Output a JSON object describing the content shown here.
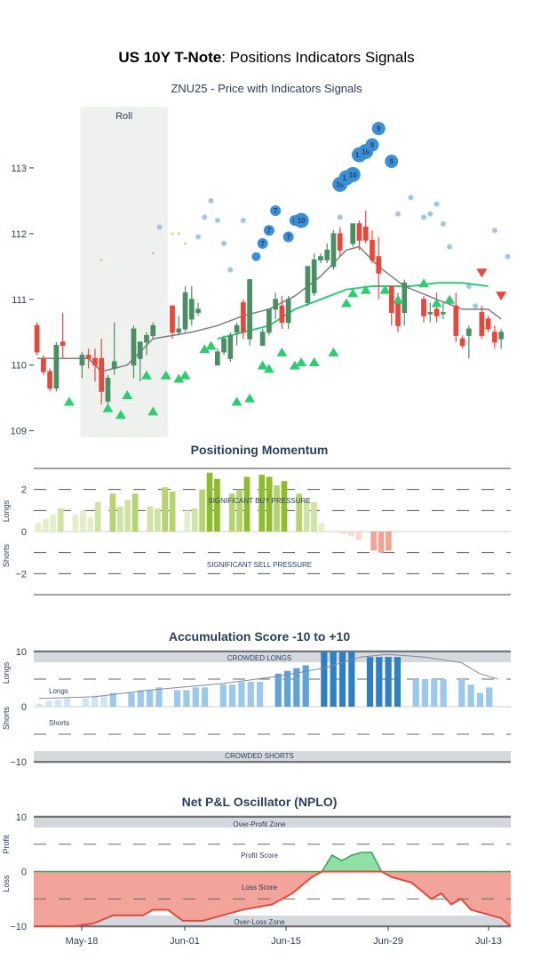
{
  "title_bold": "US 10Y T-Note",
  "title_rest": ": Positions Indicators Signals",
  "subtitle": "ZNU25 - Price with Indicators Signals",
  "colors": {
    "up": "#4a8f63",
    "down": "#e8473a",
    "ma_gray": "#7f7f7f",
    "ma_green": "#2ecc71",
    "buy_tri": "#2ecc71",
    "sell_tri": "#e8473a",
    "bubble": "#3a8fd6",
    "roll_bg": "#eef1ee"
  },
  "x_ticks": [
    "May-18",
    "Jun-01",
    "Jun-15",
    "Jun-29",
    "Jul-13"
  ],
  "chart_data": [
    {
      "type": "candlestick",
      "title": "ZNU25 - Price with Indicators Signals",
      "ylim": [
        108.9,
        114.0
      ],
      "yticks": [
        "109",
        "110",
        "111",
        "112",
        "113"
      ],
      "roll_label": "Roll",
      "x_count": 59,
      "roll_range": [
        7,
        20
      ],
      "candles": [
        [
          0,
          110.6,
          110.65,
          110.15,
          110.2
        ],
        [
          1,
          110.1,
          110.15,
          109.85,
          109.9
        ],
        [
          2,
          109.9,
          109.95,
          109.6,
          109.65
        ],
        [
          3,
          109.65,
          110.35,
          109.6,
          110.3
        ],
        [
          4,
          110.35,
          110.8,
          110.1,
          110.3
        ],
        [
          7,
          110.0,
          110.2,
          109.8,
          110.15
        ],
        [
          8,
          110.15,
          110.25,
          109.95,
          110.1
        ],
        [
          9,
          110.1,
          110.25,
          109.75,
          110.0
        ],
        [
          10,
          110.1,
          110.4,
          109.4,
          109.6
        ],
        [
          11,
          109.45,
          109.85,
          109.4,
          109.8
        ],
        [
          12,
          109.95,
          110.65,
          109.85,
          110.05
        ],
        [
          15,
          110.0,
          110.6,
          109.8,
          110.55
        ],
        [
          16,
          110.1,
          110.35,
          109.75,
          110.35
        ],
        [
          17,
          110.35,
          110.5,
          110.15,
          110.45
        ],
        [
          18,
          110.45,
          110.65,
          110.4,
          110.6
        ],
        [
          21,
          110.9,
          110.9,
          110.4,
          110.5
        ],
        [
          22,
          110.5,
          110.75,
          110.45,
          110.55
        ],
        [
          23,
          110.55,
          111.2,
          110.5,
          111.1
        ],
        [
          24,
          110.7,
          111.2,
          110.6,
          111.0
        ],
        [
          25,
          110.8,
          110.95,
          110.75,
          110.85
        ],
        [
          28,
          110.0,
          110.25,
          110.0,
          110.2
        ],
        [
          29,
          110.2,
          110.45,
          110.15,
          110.4
        ],
        [
          30,
          110.1,
          110.5,
          110.05,
          110.45
        ],
        [
          31,
          110.5,
          110.65,
          110.3,
          110.6
        ],
        [
          32,
          110.95,
          111.0,
          110.4,
          110.5
        ],
        [
          33,
          110.4,
          111.3,
          110.3,
          111.3
        ],
        [
          35,
          110.3,
          110.55,
          110.3,
          110.5
        ],
        [
          36,
          110.5,
          110.85,
          110.45,
          110.85
        ],
        [
          37,
          110.85,
          111.1,
          110.7,
          111.0
        ],
        [
          38,
          110.9,
          111.05,
          110.55,
          110.65
        ],
        [
          39,
          110.65,
          111.05,
          110.55,
          111.0
        ],
        [
          42,
          110.95,
          111.5,
          110.9,
          111.5
        ],
        [
          43,
          111.1,
          111.7,
          111.05,
          111.6
        ],
        [
          44,
          111.6,
          111.7,
          111.55,
          111.65
        ],
        [
          45,
          111.6,
          111.85,
          111.55,
          111.75
        ],
        [
          46,
          111.5,
          112.05,
          111.45,
          112.0
        ],
        [
          47,
          112.0,
          112.1,
          111.65,
          111.75
        ],
        [
          49,
          111.85,
          112.15,
          111.8,
          112.15
        ],
        [
          50,
          112.15,
          112.2,
          111.75,
          111.9
        ],
        [
          51,
          112.1,
          112.35,
          111.85,
          111.9
        ],
        [
          52,
          111.9,
          112.05,
          111.55,
          111.6
        ],
        [
          53,
          111.65,
          111.95,
          111.0,
          111.4
        ],
        [
          55,
          111.2,
          111.2,
          110.6,
          110.8
        ],
        [
          56,
          111.0,
          111.1,
          110.5,
          110.6
        ],
        [
          57,
          110.8,
          111.3,
          110.6,
          111.25
        ],
        [
          60,
          111.0,
          111.05,
          110.65,
          110.75
        ],
        [
          61,
          110.8,
          110.95,
          110.65,
          110.8
        ],
        [
          62,
          110.85,
          111.1,
          110.65,
          110.75
        ],
        [
          63,
          110.8,
          110.95,
          110.7,
          110.8
        ],
        [
          65,
          110.9,
          111.1,
          110.35,
          110.45
        ],
        [
          66,
          110.4,
          110.45,
          110.25,
          110.3
        ],
        [
          67,
          110.45,
          110.6,
          110.1,
          110.55
        ],
        [
          69,
          110.8,
          110.9,
          110.4,
          110.45
        ],
        [
          70,
          110.7,
          110.75,
          110.5,
          110.55
        ],
        [
          71,
          110.5,
          110.6,
          110.25,
          110.35
        ],
        [
          72,
          110.4,
          110.55,
          110.25,
          110.5
        ]
      ],
      "ma_gray": [
        [
          0,
          110.1
        ],
        [
          4,
          110.1
        ],
        [
          8,
          110.1
        ],
        [
          10,
          109.9
        ],
        [
          14,
          110.0
        ],
        [
          18,
          110.4
        ],
        [
          24,
          110.5
        ],
        [
          28,
          110.6
        ],
        [
          32,
          110.75
        ],
        [
          36,
          110.85
        ],
        [
          40,
          111.05
        ],
        [
          44,
          111.35
        ],
        [
          48,
          111.75
        ],
        [
          50,
          111.8
        ],
        [
          53,
          111.5
        ],
        [
          57,
          111.2
        ],
        [
          62,
          111.0
        ],
        [
          66,
          110.85
        ],
        [
          70,
          110.85
        ],
        [
          72,
          110.7
        ]
      ],
      "ma_green": [
        [
          28,
          110.4
        ],
        [
          32,
          110.5
        ],
        [
          36,
          110.6
        ],
        [
          40,
          110.85
        ],
        [
          44,
          111.0
        ],
        [
          48,
          111.15
        ],
        [
          52,
          111.2
        ],
        [
          58,
          111.2
        ],
        [
          62,
          111.25
        ],
        [
          66,
          111.25
        ],
        [
          70,
          111.2
        ]
      ],
      "buy_signals": [
        [
          5,
          109.45
        ],
        [
          11,
          109.35
        ],
        [
          13,
          109.25
        ],
        [
          14,
          109.55
        ],
        [
          17,
          109.85
        ],
        [
          18,
          109.3
        ],
        [
          20,
          109.85
        ],
        [
          22,
          109.8
        ],
        [
          23,
          109.85
        ],
        [
          26,
          110.25
        ],
        [
          27,
          110.3
        ],
        [
          31,
          109.45
        ],
        [
          33,
          109.5
        ],
        [
          35,
          110.0
        ],
        [
          36,
          109.95
        ],
        [
          38,
          110.2
        ],
        [
          40,
          110.0
        ],
        [
          41,
          110.05
        ],
        [
          43,
          110.05
        ],
        [
          46,
          110.2
        ],
        [
          48,
          110.95
        ],
        [
          49,
          111.1
        ],
        [
          51,
          111.15
        ],
        [
          54,
          111.15
        ],
        [
          56,
          111.0
        ],
        [
          60,
          111.25
        ],
        [
          62,
          110.95
        ],
        [
          64,
          111.0
        ]
      ],
      "sell_signals": [
        [
          69,
          111.4
        ],
        [
          72,
          111.05
        ]
      ],
      "bubbles": [
        [
          34,
          111.65,
          ""
        ],
        [
          35,
          111.85,
          "7"
        ],
        [
          36,
          112.05,
          "7"
        ],
        [
          37,
          112.35,
          "7"
        ],
        [
          39,
          111.95,
          "7"
        ],
        [
          40,
          112.2,
          "8"
        ],
        [
          41,
          112.2,
          "10"
        ],
        [
          47,
          112.75,
          "10"
        ],
        [
          48,
          112.85,
          "10"
        ],
        [
          49,
          112.9,
          "10"
        ],
        [
          50,
          113.2,
          "10"
        ],
        [
          51,
          113.25,
          "10"
        ],
        [
          52,
          113.35,
          "9"
        ],
        [
          53,
          113.6,
          "9"
        ],
        [
          55,
          113.1,
          "9"
        ]
      ],
      "light_dots": [
        [
          19,
          112.1
        ],
        [
          25,
          111.95
        ],
        [
          26,
          112.25
        ],
        [
          27,
          112.5
        ],
        [
          28,
          112.2
        ],
        [
          29,
          111.85
        ],
        [
          30,
          111.45
        ],
        [
          32,
          112.2
        ],
        [
          47,
          112.25
        ],
        [
          56,
          112.3
        ],
        [
          58,
          112.55
        ],
        [
          60,
          112.25
        ],
        [
          61,
          112.3
        ],
        [
          62,
          112.45
        ],
        [
          63,
          112.15
        ],
        [
          64,
          111.8
        ],
        [
          67,
          111.2
        ],
        [
          68,
          110.9
        ],
        [
          71,
          112.05
        ],
        [
          73,
          111.65
        ]
      ],
      "orange_dots": [
        [
          10,
          111.6
        ],
        [
          18,
          111.7
        ],
        [
          21,
          112.0
        ],
        [
          22,
          112.0
        ],
        [
          23,
          111.85
        ]
      ]
    },
    {
      "type": "bar",
      "title": "Positioning Momentum",
      "ylabel_top": "Longs",
      "ylabel_bottom": "Shorts",
      "ylim": [
        -3,
        3
      ],
      "yticks": [
        "−2",
        "0",
        "2"
      ],
      "annotations": [
        "SIGNIFICANT BUY PRESSURE",
        "SIGNIFICANT SELL PRESSURE"
      ],
      "values": [
        [
          0,
          0.4
        ],
        [
          1,
          0.6
        ],
        [
          2,
          0.8
        ],
        [
          3,
          1.1
        ],
        [
          5,
          0.8
        ],
        [
          6,
          1.0
        ],
        [
          7,
          0.7
        ],
        [
          8,
          1.4
        ],
        [
          10,
          1.8
        ],
        [
          11,
          1.2
        ],
        [
          12,
          1.5
        ],
        [
          13,
          1.8
        ],
        [
          15,
          1.2
        ],
        [
          16,
          1.1
        ],
        [
          17,
          2.1
        ],
        [
          18,
          1.9
        ],
        [
          20,
          1.0
        ],
        [
          21,
          1.1
        ],
        [
          22,
          2.0
        ],
        [
          23,
          2.8
        ],
        [
          24,
          2.5
        ],
        [
          26,
          1.8
        ],
        [
          27,
          2.0
        ],
        [
          28,
          2.6
        ],
        [
          30,
          2.7
        ],
        [
          31,
          2.6
        ],
        [
          32,
          2.2
        ],
        [
          33,
          2.4
        ],
        [
          35,
          1.8
        ],
        [
          36,
          1.5
        ],
        [
          37,
          1.4
        ],
        [
          38,
          0.4
        ],
        [
          40,
          -0.05
        ],
        [
          41,
          -0.1
        ],
        [
          42,
          -0.2
        ],
        [
          43,
          -0.4
        ],
        [
          45,
          -0.9
        ],
        [
          46,
          -1.0
        ],
        [
          47,
          -0.9
        ]
      ]
    },
    {
      "type": "bar",
      "title": "Accumulation Score -10 to +10",
      "ylabel_top": "Longs",
      "ylabel_bottom": "Shorts",
      "ylim": [
        -10,
        10
      ],
      "yticks": [
        "−10",
        "0",
        "10"
      ],
      "annotations": [
        "CROWDED LONGS",
        "CROWDED SHORTS"
      ],
      "legend_longs": "Longs",
      "legend_shorts": "Shorts",
      "values": [
        [
          0,
          0.5
        ],
        [
          1,
          1.0
        ],
        [
          2,
          1.2
        ],
        [
          3,
          1.5
        ],
        [
          5,
          1.5
        ],
        [
          6,
          2.0
        ],
        [
          7,
          2.0
        ],
        [
          8,
          2.5
        ],
        [
          10,
          2.5
        ],
        [
          11,
          3.0
        ],
        [
          12,
          3.0
        ],
        [
          13,
          3.5
        ],
        [
          15,
          3.0
        ],
        [
          16,
          3.0
        ],
        [
          17,
          3.5
        ],
        [
          18,
          3.5
        ],
        [
          20,
          4.0
        ],
        [
          21,
          4.0
        ],
        [
          22,
          4.5
        ],
        [
          23,
          4.5
        ],
        [
          24,
          4.5
        ],
        [
          26,
          6.0
        ],
        [
          27,
          6.5
        ],
        [
          28,
          7.0
        ],
        [
          29,
          7.5
        ],
        [
          31,
          10.0
        ],
        [
          32,
          10.0
        ],
        [
          33,
          10.0
        ],
        [
          34,
          10.0
        ],
        [
          36,
          9.0
        ],
        [
          37,
          9.0
        ],
        [
          38,
          9.0
        ],
        [
          39,
          9.0
        ],
        [
          41,
          5.0
        ],
        [
          42,
          5.0
        ],
        [
          43,
          5.0
        ],
        [
          44,
          5.0
        ],
        [
          46,
          5.0
        ],
        [
          47,
          4.0
        ],
        [
          48,
          2.5
        ],
        [
          49,
          3.5
        ]
      ],
      "line": [
        [
          0,
          1.5
        ],
        [
          6,
          1.8
        ],
        [
          12,
          3.0
        ],
        [
          20,
          4.2
        ],
        [
          26,
          5.5
        ],
        [
          31,
          7.0
        ],
        [
          35,
          9.0
        ],
        [
          38,
          9.5
        ],
        [
          42,
          9.0
        ],
        [
          46,
          8.0
        ],
        [
          48,
          6.0
        ],
        [
          50,
          5.0
        ]
      ]
    },
    {
      "type": "area",
      "title": "Net P&L Oscillator (NPLO)",
      "ylabel_top": "Profit",
      "ylabel_bottom": "Loss",
      "ylim": [
        -10,
        10
      ],
      "yticks": [
        "−10",
        "0",
        "10"
      ],
      "annotations": [
        "Over-Profit Zone",
        "Profit Score",
        "Loss Score",
        "Over-Loss Zone"
      ],
      "line": [
        [
          0,
          -10
        ],
        [
          4,
          -10
        ],
        [
          8,
          -10
        ],
        [
          12,
          -9.5
        ],
        [
          16,
          -8.0
        ],
        [
          22,
          -8.0
        ],
        [
          24,
          -7.0
        ],
        [
          27,
          -7.0
        ],
        [
          30,
          -9.0
        ],
        [
          34,
          -9.0
        ],
        [
          38,
          -8.0
        ],
        [
          42,
          -7.0
        ],
        [
          48,
          -6.0
        ],
        [
          52,
          -4.0
        ],
        [
          56,
          -1.0
        ],
        [
          58,
          0
        ],
        [
          60,
          3.0
        ],
        [
          62,
          2.0
        ],
        [
          64,
          3.0
        ],
        [
          66,
          3.5
        ],
        [
          68,
          3.5
        ],
        [
          70,
          0
        ],
        [
          72,
          -1.0
        ],
        [
          76,
          -2.0
        ],
        [
          78,
          -3.5
        ],
        [
          80,
          -5.0
        ],
        [
          82,
          -4.0
        ],
        [
          84,
          -6.0
        ],
        [
          86,
          -5.0
        ],
        [
          88,
          -7.0
        ],
        [
          92,
          -8.0
        ],
        [
          94,
          -8.5
        ],
        [
          96,
          -10
        ]
      ]
    }
  ]
}
